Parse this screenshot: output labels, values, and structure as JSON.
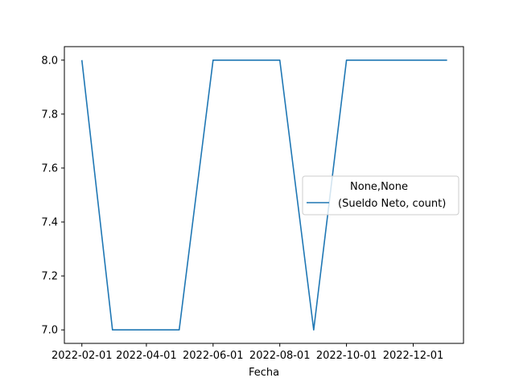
{
  "chart_data": {
    "type": "line",
    "xlabel": "Fecha",
    "ylabel": "",
    "x": [
      "2022-02-01",
      "2022-03-01",
      "2022-04-01",
      "2022-05-01",
      "2022-06-01",
      "2022-07-01",
      "2022-08-01",
      "2022-09-01",
      "2022-10-01",
      "2022-11-01",
      "2022-12-01",
      "2023-01-01"
    ],
    "series": [
      {
        "name": "(Sueldo Neto, count)",
        "color": "#1f77b4",
        "values": [
          8,
          7,
          7,
          7,
          8,
          8,
          8,
          7,
          8,
          8,
          8,
          8
        ]
      }
    ],
    "x_ticks": [
      "2022-02-01",
      "2022-04-01",
      "2022-06-01",
      "2022-08-01",
      "2022-10-01",
      "2022-12-01"
    ],
    "y_ticks": [
      "7.0",
      "7.2",
      "7.4",
      "7.6",
      "7.8",
      "8.0"
    ],
    "ylim": [
      6.95,
      8.05
    ],
    "legend": {
      "title": "None,None",
      "placement": "center-right"
    },
    "grid": false
  }
}
